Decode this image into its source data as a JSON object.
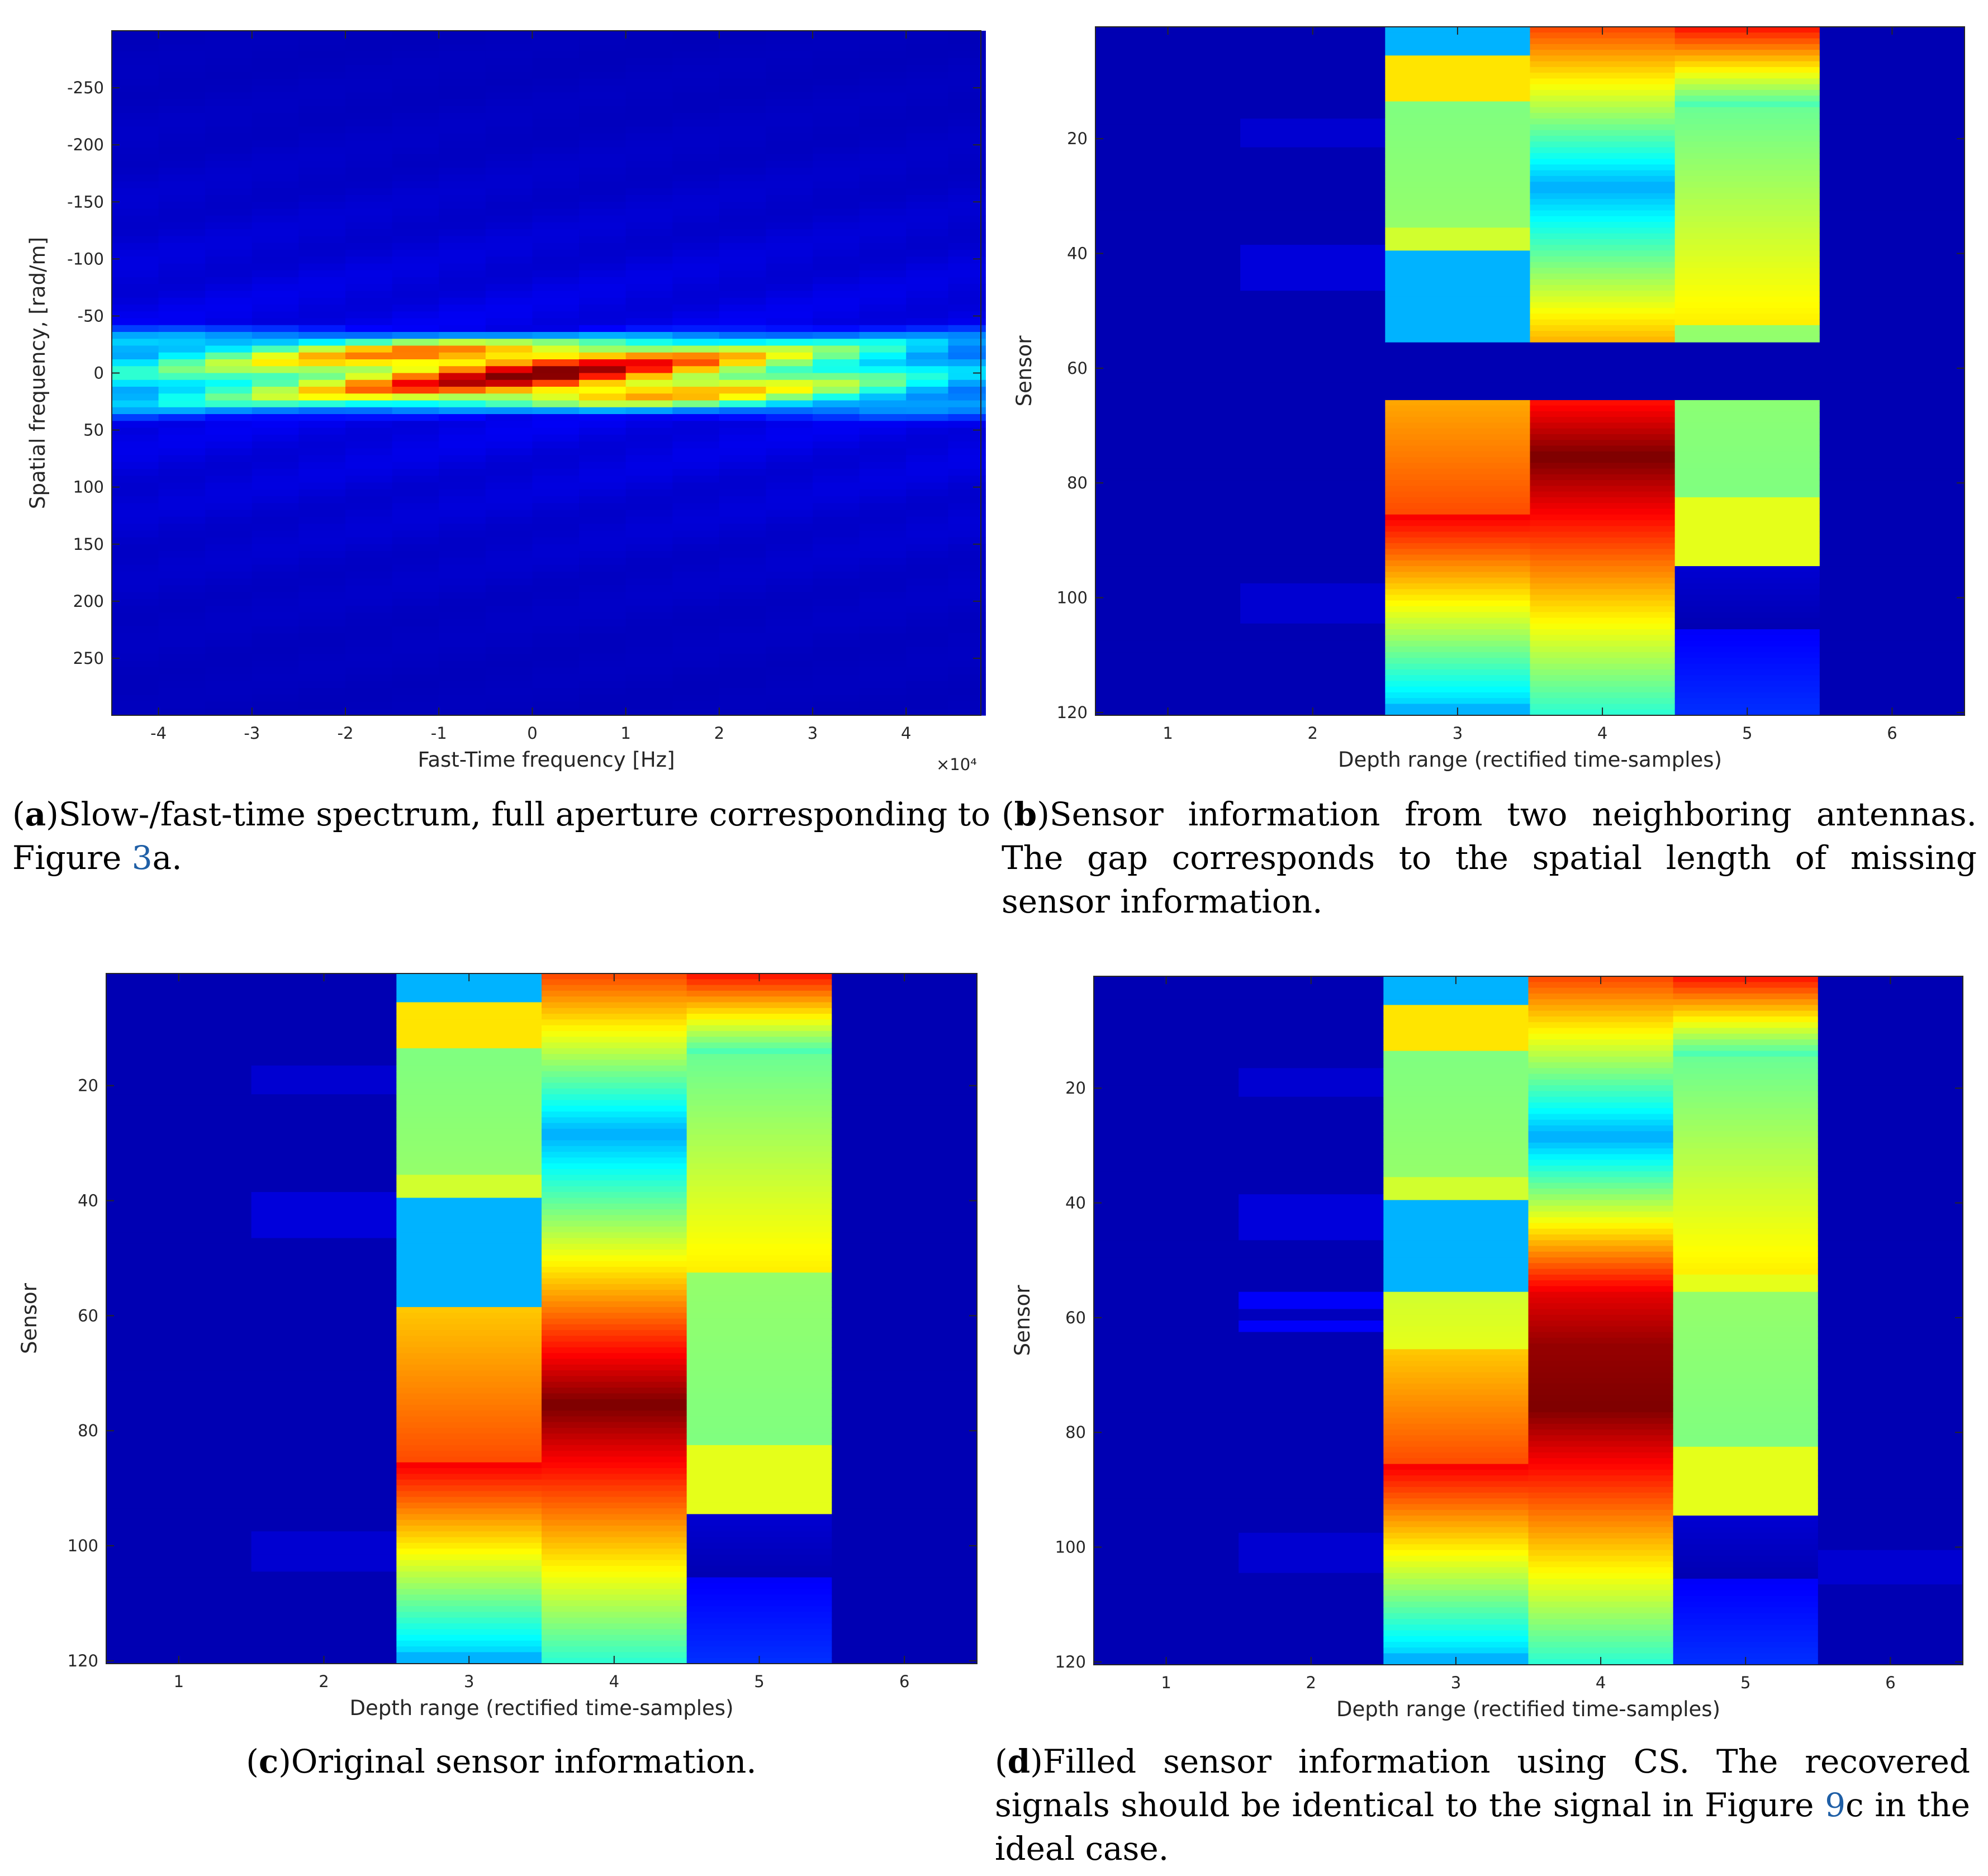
{
  "chart_data": [
    {
      "id": "a",
      "type": "heatmap",
      "xlabel": "Fast-Time frequency [Hz]",
      "ylabel": "Spatial frequency, [rad/m]",
      "x_ticks": [
        "-4",
        "-3",
        "-2",
        "-1",
        "0",
        "1",
        "2",
        "3",
        "4"
      ],
      "x_tick_values": [
        -4,
        -3,
        -2,
        -1,
        0,
        1,
        2,
        3,
        4
      ],
      "x_range": [
        -4.5,
        4.8
      ],
      "x_multiplier": "×10⁴",
      "y_ticks": [
        "-250",
        "-200",
        "-150",
        "-100",
        "-50",
        "0",
        "50",
        "100",
        "150",
        "200",
        "250"
      ],
      "y_tick_values": [
        -250,
        -200,
        -150,
        -100,
        -50,
        0,
        50,
        100,
        150,
        200,
        250
      ],
      "y_range": [
        -300,
        300
      ],
      "y_reversed": true,
      "colormap": "jet",
      "x_columns": [
        -4.25,
        -3.75,
        -3.25,
        -2.75,
        -2.25,
        -1.75,
        -1.25,
        -0.75,
        -0.25,
        0.25,
        0.75,
        1.25,
        1.75,
        2.25,
        2.75,
        3.25,
        3.75,
        4.25,
        4.65
      ],
      "column_peak_intensity": [
        0.38,
        0.45,
        0.52,
        0.6,
        0.68,
        0.76,
        0.85,
        0.92,
        0.97,
        0.97,
        0.92,
        0.85,
        0.76,
        0.68,
        0.6,
        0.52,
        0.44,
        0.36,
        0.3
      ],
      "band_halfwidth": [
        40,
        38,
        36,
        35,
        34,
        33,
        32,
        31,
        30,
        30,
        31,
        32,
        33,
        34,
        35,
        36,
        38,
        40,
        42
      ]
    },
    {
      "id": "b",
      "type": "heatmap",
      "xlabel": "Depth range (rectified time-samples)",
      "ylabel": "Sensor",
      "x_ticks": [
        "1",
        "2",
        "3",
        "4",
        "5",
        "6"
      ],
      "x_tick_values": [
        1,
        2,
        3,
        4,
        5,
        6
      ],
      "x_range": [
        0.5,
        6.5
      ],
      "y_ticks": [
        "20",
        "40",
        "60",
        "80",
        "100",
        "120"
      ],
      "y_tick_values": [
        20,
        40,
        60,
        80,
        100,
        120
      ],
      "y_range": [
        0.5,
        120.5
      ],
      "y_reversed": true,
      "colormap": "jet",
      "gap_rows": [
        56,
        65
      ]
    },
    {
      "id": "c",
      "type": "heatmap",
      "xlabel": "Depth range (rectified time-samples)",
      "ylabel": "Sensor",
      "x_ticks": [
        "1",
        "2",
        "3",
        "4",
        "5",
        "6"
      ],
      "x_tick_values": [
        1,
        2,
        3,
        4,
        5,
        6
      ],
      "x_range": [
        0.5,
        6.5
      ],
      "y_ticks": [
        "20",
        "40",
        "60",
        "80",
        "100",
        "120"
      ],
      "y_tick_values": [
        20,
        40,
        60,
        80,
        100,
        120
      ],
      "y_range": [
        0.5,
        120.5
      ],
      "y_reversed": true,
      "colormap": "jet",
      "columns": [
        {
          "x": 1,
          "segments": [
            {
              "from": 1,
              "to": 120,
              "v": [
                0.05,
                0.05
              ]
            }
          ]
        },
        {
          "x": 2,
          "segments": [
            {
              "from": 1,
              "to": 16,
              "v": [
                0.05,
                0.05
              ]
            },
            {
              "from": 17,
              "to": 21,
              "v": [
                0.08,
                0.08
              ]
            },
            {
              "from": 22,
              "to": 38,
              "v": [
                0.05,
                0.05
              ]
            },
            {
              "from": 39,
              "to": 46,
              "v": [
                0.09,
                0.09
              ]
            },
            {
              "from": 47,
              "to": 97,
              "v": [
                0.05,
                0.05
              ]
            },
            {
              "from": 98,
              "to": 104,
              "v": [
                0.08,
                0.08
              ]
            },
            {
              "from": 105,
              "to": 120,
              "v": [
                0.05,
                0.05
              ]
            }
          ]
        },
        {
          "x": 3,
          "segments": [
            {
              "from": 1,
              "to": 5,
              "v": [
                0.3,
                0.3
              ]
            },
            {
              "from": 6,
              "to": 13,
              "v": [
                0.65,
                0.65
              ]
            },
            {
              "from": 14,
              "to": 35,
              "v": [
                0.5,
                0.52
              ]
            },
            {
              "from": 36,
              "to": 39,
              "v": [
                0.58,
                0.58
              ]
            },
            {
              "from": 40,
              "to": 58,
              "v": [
                0.3,
                0.3
              ]
            },
            {
              "from": 59,
              "to": 85,
              "v": [
                0.68,
                0.8
              ]
            },
            {
              "from": 86,
              "to": 118,
              "v": [
                0.88,
                0.34
              ]
            },
            {
              "from": 119,
              "to": 120,
              "v": [
                0.3,
                0.3
              ]
            }
          ]
        },
        {
          "x": 4,
          "segments": [
            {
              "from": 1,
              "to": 28,
              "v": [
                0.8,
                0.3
              ]
            },
            {
              "from": 29,
              "to": 75,
              "v": [
                0.3,
                1.0
              ]
            },
            {
              "from": 76,
              "to": 120,
              "v": [
                1.0,
                0.42
              ]
            }
          ]
        },
        {
          "x": 5,
          "segments": [
            {
              "from": 1,
              "to": 14,
              "v": [
                0.85,
                0.45
              ]
            },
            {
              "from": 15,
              "to": 52,
              "v": [
                0.48,
                0.64
              ]
            },
            {
              "from": 53,
              "to": 82,
              "v": [
                0.52,
                0.5
              ]
            },
            {
              "from": 83,
              "to": 94,
              "v": [
                0.6,
                0.6
              ]
            },
            {
              "from": 95,
              "to": 105,
              "v": [
                0.08,
                0.05
              ]
            },
            {
              "from": 106,
              "to": 120,
              "v": [
                0.12,
                0.17
              ]
            }
          ]
        },
        {
          "x": 6,
          "segments": [
            {
              "from": 1,
              "to": 120,
              "v": [
                0.05,
                0.05
              ]
            }
          ]
        }
      ]
    },
    {
      "id": "d",
      "type": "heatmap",
      "xlabel": "Depth range (rectified time-samples)",
      "ylabel": "Sensor",
      "x_ticks": [
        "1",
        "2",
        "3",
        "4",
        "5",
        "6"
      ],
      "x_tick_values": [
        1,
        2,
        3,
        4,
        5,
        6
      ],
      "x_range": [
        0.5,
        6.5
      ],
      "y_ticks": [
        "20",
        "40",
        "60",
        "80",
        "100",
        "120"
      ],
      "y_tick_values": [
        20,
        40,
        60,
        80,
        100,
        120
      ],
      "y_range": [
        0.5,
        120.5
      ],
      "y_reversed": true,
      "colormap": "jet",
      "columns": [
        {
          "x": 1,
          "segments": [
            {
              "from": 1,
              "to": 120,
              "v": [
                0.05,
                0.05
              ]
            }
          ]
        },
        {
          "x": 2,
          "segments": [
            {
              "from": 1,
              "to": 16,
              "v": [
                0.05,
                0.05
              ]
            },
            {
              "from": 17,
              "to": 21,
              "v": [
                0.08,
                0.08
              ]
            },
            {
              "from": 22,
              "to": 38,
              "v": [
                0.05,
                0.05
              ]
            },
            {
              "from": 39,
              "to": 46,
              "v": [
                0.09,
                0.09
              ]
            },
            {
              "from": 47,
              "to": 55,
              "v": [
                0.05,
                0.05
              ]
            },
            {
              "from": 56,
              "to": 58,
              "v": [
                0.12,
                0.12
              ]
            },
            {
              "from": 59,
              "to": 60,
              "v": [
                0.06,
                0.06
              ]
            },
            {
              "from": 61,
              "to": 62,
              "v": [
                0.12,
                0.12
              ]
            },
            {
              "from": 63,
              "to": 97,
              "v": [
                0.05,
                0.05
              ]
            },
            {
              "from": 98,
              "to": 104,
              "v": [
                0.08,
                0.08
              ]
            },
            {
              "from": 105,
              "to": 120,
              "v": [
                0.05,
                0.05
              ]
            }
          ]
        },
        {
          "x": 3,
          "segments": [
            {
              "from": 1,
              "to": 5,
              "v": [
                0.3,
                0.3
              ]
            },
            {
              "from": 6,
              "to": 13,
              "v": [
                0.65,
                0.65
              ]
            },
            {
              "from": 14,
              "to": 35,
              "v": [
                0.5,
                0.52
              ]
            },
            {
              "from": 36,
              "to": 39,
              "v": [
                0.58,
                0.58
              ]
            },
            {
              "from": 40,
              "to": 55,
              "v": [
                0.3,
                0.3
              ]
            },
            {
              "from": 56,
              "to": 65,
              "v": [
                0.58,
                0.6
              ]
            },
            {
              "from": 66,
              "to": 85,
              "v": [
                0.68,
                0.8
              ]
            },
            {
              "from": 86,
              "to": 118,
              "v": [
                0.88,
                0.34
              ]
            },
            {
              "from": 119,
              "to": 120,
              "v": [
                0.3,
                0.3
              ]
            }
          ]
        },
        {
          "x": 4,
          "segments": [
            {
              "from": 1,
              "to": 28,
              "v": [
                0.8,
                0.3
              ]
            },
            {
              "from": 29,
              "to": 55,
              "v": [
                0.3,
                0.88
              ]
            },
            {
              "from": 56,
              "to": 65,
              "v": [
                0.9,
                0.98
              ]
            },
            {
              "from": 66,
              "to": 75,
              "v": [
                0.98,
                1.0
              ]
            },
            {
              "from": 76,
              "to": 120,
              "v": [
                1.0,
                0.42
              ]
            }
          ]
        },
        {
          "x": 5,
          "segments": [
            {
              "from": 1,
              "to": 14,
              "v": [
                0.85,
                0.45
              ]
            },
            {
              "from": 15,
              "to": 52,
              "v": [
                0.48,
                0.64
              ]
            },
            {
              "from": 53,
              "to": 55,
              "v": [
                0.6,
                0.6
              ]
            },
            {
              "from": 56,
              "to": 82,
              "v": [
                0.52,
                0.5
              ]
            },
            {
              "from": 83,
              "to": 94,
              "v": [
                0.6,
                0.6
              ]
            },
            {
              "from": 95,
              "to": 105,
              "v": [
                0.08,
                0.05
              ]
            },
            {
              "from": 106,
              "to": 120,
              "v": [
                0.12,
                0.17
              ]
            }
          ]
        },
        {
          "x": 6,
          "segments": [
            {
              "from": 1,
              "to": 100,
              "v": [
                0.05,
                0.05
              ]
            },
            {
              "from": 101,
              "to": 106,
              "v": [
                0.08,
                0.08
              ]
            },
            {
              "from": 107,
              "to": 120,
              "v": [
                0.05,
                0.05
              ]
            }
          ]
        }
      ]
    }
  ],
  "captions": {
    "a": {
      "tag": "a",
      "text_before_ref": "Slow-/fast-time spectrum, full aperture corresponding to Figure ",
      "ref": "3",
      "text_after_ref": "a."
    },
    "b": {
      "tag": "b",
      "text": "Sensor information from two neighboring antennas. The gap corresponds to the spatial length of missing sensor information."
    },
    "c": {
      "tag": "c",
      "text": "Original sensor information."
    },
    "d": {
      "tag": "d",
      "text_before_ref": "Filled sensor information using CS. The recovered signals should be identical to the signal in Figure ",
      "ref": "9",
      "text_after_ref": "c in the ideal case."
    }
  }
}
